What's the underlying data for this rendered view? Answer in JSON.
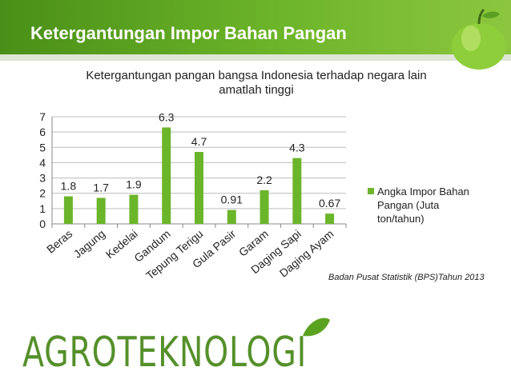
{
  "header": {
    "title": "Ketergantungan Impor Bahan Pangan"
  },
  "colors": {
    "bar": "#6bb52b",
    "header": "#5aa321",
    "logo": "#55902a"
  },
  "logo": {
    "text": "AGROTEKNOLOGI"
  },
  "source": "Badan Pusat Statistik (BPS)Tahun 2013",
  "chart_data": {
    "type": "bar",
    "title_lines": [
      "Ketergantungan pangan bangsa Indonesia terhadap negara lain",
      "amatlah tinggi"
    ],
    "categories": [
      "Beras",
      "Jagung",
      "Kedelai",
      "Gandum",
      "Tepung Terigu",
      "Gula Pasir",
      "Garam",
      "Daging Sapi",
      "Daging Ayam"
    ],
    "series": [
      {
        "name": "Angka Impor Bahan Pangan (Juta ton/tahun)",
        "values": [
          1.8,
          1.7,
          1.9,
          6.3,
          4.7,
          0.91,
          2.2,
          4.3,
          0.67
        ],
        "labels": [
          "1.8",
          "1.7",
          "1.9",
          "6.3",
          "4.7",
          "0.91",
          "2.2",
          "4.3",
          "0.67"
        ]
      }
    ],
    "ylim": [
      0,
      7
    ],
    "yticks": [
      0,
      1,
      2,
      3,
      4,
      5,
      6,
      7
    ],
    "grid": true,
    "legend": "right"
  }
}
